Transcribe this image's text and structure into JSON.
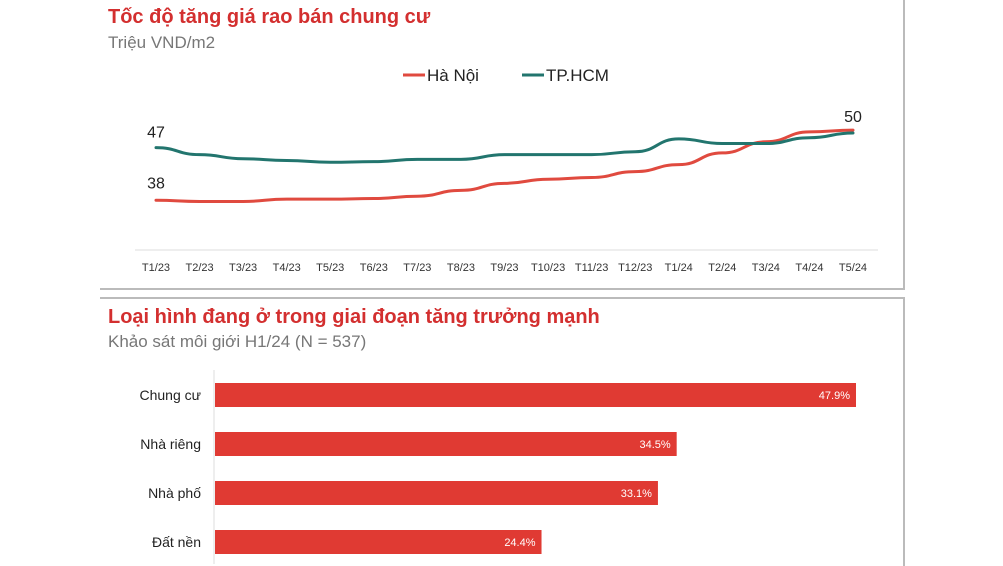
{
  "chart_data": [
    {
      "type": "line",
      "title": "Tốc độ tăng giá rao bán chung cư",
      "subtitle": "Triệu VND/m2",
      "xlabel": "",
      "ylabel": "Triệu VND/m2",
      "categories": [
        "T1/23",
        "T2/23",
        "T3/23",
        "T4/23",
        "T5/23",
        "T6/23",
        "T7/23",
        "T8/23",
        "T9/23",
        "T10/23",
        "T11/23",
        "T12/23",
        "T1/24",
        "T2/24",
        "T3/24",
        "T4/24",
        "T5/24"
      ],
      "series": [
        {
          "name": "Hà Nội",
          "color": "#e04a3f",
          "values": [
            38,
            37.8,
            37.8,
            38.2,
            38.2,
            38.3,
            38.7,
            39.7,
            40.9,
            41.6,
            41.9,
            42.9,
            44.1,
            46.1,
            48,
            49.7,
            50
          ]
        },
        {
          "name": "TP.HCM",
          "color": "#22756e",
          "values": [
            47,
            45.8,
            45.1,
            44.8,
            44.5,
            44.6,
            45,
            45,
            45.8,
            45.8,
            45.8,
            46.3,
            48.5,
            47.7,
            47.7,
            48.7,
            49.5
          ]
        }
      ],
      "data_labels": [
        {
          "text": "47"
        },
        {
          "text": "38"
        },
        {
          "text": "50"
        }
      ],
      "ylim": [
        29.5,
        56
      ],
      "legend": "top-center",
      "grid": false
    },
    {
      "type": "bar",
      "orientation": "horizontal",
      "title": "Loại hình đang ở trong giai đoạn tăng trưởng mạnh",
      "subtitle": "Khảo sát môi giới H1/24 (N = 537)",
      "categories": [
        "Chung cư",
        "Nhà riêng",
        "Nhà phố",
        "Đất nền"
      ],
      "values": [
        47.9,
        34.5,
        33.1,
        24.4
      ],
      "value_labels": [
        "47.9%",
        "34.5%",
        "33.1%",
        "24.4%"
      ],
      "color": "#e03a33",
      "xlim": [
        0,
        47.9
      ]
    }
  ]
}
